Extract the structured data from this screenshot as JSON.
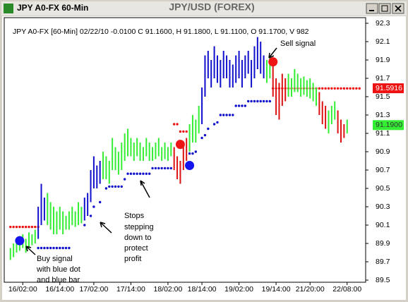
{
  "window": {
    "title": "JPY A0-FX 60-Min"
  },
  "chart_data": {
    "type": "ohlc",
    "title": "JPY/USD (FOREX)",
    "subtitle": "JPY A0-FX [60-Min] 02/22/10 -0.0100 C 91.1600, H 91.1800, L 91.1100, O 91.1700, V 982",
    "ylim": [
      89.5,
      92.3
    ],
    "yticks": [
      92.3,
      92.1,
      91.9,
      91.7,
      91.5,
      91.3,
      91.1,
      90.9,
      90.7,
      90.5,
      90.3,
      90.1,
      89.9,
      89.7,
      89.5
    ],
    "xlim": [
      -2,
      115
    ],
    "xticks": [
      {
        "value": 4,
        "label": "16/02:00"
      },
      {
        "value": 16,
        "label": "16/14:00"
      },
      {
        "value": 27,
        "label": "17/02:00"
      },
      {
        "value": 39,
        "label": "17/14:00"
      },
      {
        "value": 51,
        "label": "18/02:00"
      },
      {
        "value": 62,
        "label": "18/14:00"
      },
      {
        "value": 74,
        "label": "19/02:00"
      },
      {
        "value": 86,
        "label": "19/14:00"
      },
      {
        "value": 97,
        "label": "21/20:00"
      },
      {
        "value": 109,
        "label": "22/08:00"
      }
    ],
    "series": [
      {
        "color": "#33ee33",
        "x": [
          0,
          1,
          2,
          3,
          4,
          5,
          6,
          7,
          8,
          12,
          13,
          14,
          15,
          16,
          17,
          18,
          19,
          20,
          21,
          22,
          23,
          30,
          31,
          32,
          33,
          34,
          35,
          36,
          37,
          38,
          39,
          40,
          41,
          42,
          43,
          44,
          45,
          46,
          47,
          48,
          49,
          50,
          51,
          52,
          58,
          59,
          60,
          61,
          83,
          84,
          90,
          91,
          92,
          93,
          94,
          95,
          96,
          97,
          98,
          99,
          103,
          104,
          105,
          109
        ],
        "high": [
          89.85,
          89.9,
          89.95,
          89.98,
          90.0,
          89.95,
          90.02,
          90.0,
          90.05,
          90.45,
          90.35,
          90.3,
          90.25,
          90.3,
          90.25,
          90.2,
          90.25,
          90.3,
          90.25,
          90.35,
          90.3,
          90.9,
          90.85,
          90.8,
          91.05,
          90.95,
          90.9,
          91.0,
          91.1,
          91.15,
          91.05,
          91.0,
          91.05,
          91.0,
          90.95,
          91.05,
          91.0,
          90.95,
          91.0,
          91.05,
          90.95,
          91.0,
          90.95,
          91.0,
          91.2,
          91.3,
          91.25,
          91.4,
          91.9,
          91.95,
          91.75,
          91.7,
          91.8,
          91.75,
          91.7,
          91.72,
          91.68,
          91.7,
          91.65,
          91.6,
          91.35,
          91.4,
          91.45,
          91.25
        ],
        "low": [
          89.72,
          89.75,
          89.8,
          89.82,
          89.85,
          89.8,
          89.85,
          89.88,
          89.9,
          90.1,
          90.05,
          90.0,
          90.0,
          90.05,
          90.0,
          90.05,
          90.05,
          90.1,
          90.08,
          90.1,
          90.12,
          90.6,
          90.6,
          90.55,
          90.7,
          90.7,
          90.65,
          90.7,
          90.8,
          90.85,
          90.85,
          90.8,
          90.85,
          90.8,
          90.8,
          90.85,
          90.8,
          90.8,
          90.82,
          90.85,
          90.8,
          90.82,
          90.8,
          90.85,
          90.9,
          91.0,
          91.0,
          91.1,
          91.65,
          91.7,
          91.5,
          91.5,
          91.55,
          91.55,
          91.5,
          91.52,
          91.5,
          91.48,
          91.45,
          91.4,
          91.1,
          91.2,
          91.25,
          91.1
        ]
      },
      {
        "color": "#1010cc",
        "x": [
          9,
          10,
          11,
          24,
          25,
          26,
          27,
          28,
          29,
          62,
          63,
          64,
          65,
          66,
          67,
          68,
          69,
          70,
          71,
          72,
          73,
          74,
          75,
          76,
          77,
          78,
          79,
          80,
          81,
          82
        ],
        "high": [
          90.3,
          90.55,
          90.4,
          90.4,
          90.45,
          90.7,
          90.85,
          90.75,
          90.8,
          91.6,
          91.95,
          92.0,
          91.9,
          92.05,
          91.95,
          91.9,
          92.0,
          91.95,
          91.9,
          91.85,
          91.95,
          92.0,
          91.9,
          91.95,
          92.0,
          91.9,
          92.05,
          92.15,
          92.1,
          91.95
        ],
        "low": [
          89.95,
          90.1,
          90.15,
          90.15,
          90.2,
          90.35,
          90.5,
          90.5,
          90.55,
          91.2,
          91.5,
          91.7,
          91.6,
          91.7,
          91.65,
          91.6,
          91.7,
          91.7,
          91.6,
          91.6,
          91.65,
          91.7,
          91.6,
          91.7,
          91.75,
          91.6,
          91.7,
          91.8,
          91.75,
          91.7
        ]
      },
      {
        "color": "#dd1111",
        "x": [
          53,
          54,
          55,
          56,
          57,
          85,
          86,
          87,
          88,
          89,
          100,
          101,
          102,
          106,
          107,
          108
        ],
        "high": [
          90.95,
          90.85,
          90.8,
          91.0,
          91.05,
          91.85,
          91.7,
          91.65,
          91.75,
          91.7,
          91.55,
          91.45,
          91.4,
          91.35,
          91.25,
          91.2
        ],
        "low": [
          90.7,
          90.6,
          90.55,
          90.7,
          90.8,
          91.5,
          91.3,
          91.25,
          91.4,
          91.45,
          91.3,
          91.2,
          91.15,
          91.1,
          91.0,
          91.05
        ]
      }
    ],
    "stops": [
      {
        "color": "#1010cc",
        "x": [
          9,
          10,
          11,
          12,
          13,
          14,
          15,
          16,
          17,
          18,
          19,
          24,
          26,
          27,
          29,
          31,
          32,
          33,
          34,
          35,
          36,
          37,
          38,
          39,
          40,
          41,
          42,
          43,
          44,
          45,
          46,
          47,
          48,
          49,
          50,
          51,
          52,
          58,
          59,
          60,
          62,
          63,
          64,
          66,
          67,
          68,
          69,
          70,
          71,
          72,
          73,
          74,
          75,
          76,
          77,
          78,
          79,
          80,
          81,
          82,
          83,
          84
        ],
        "values": [
          89.85,
          89.85,
          89.85,
          89.85,
          89.85,
          89.85,
          89.85,
          89.85,
          89.85,
          89.85,
          89.85,
          90.1,
          90.2,
          90.3,
          90.35,
          90.5,
          90.52,
          90.52,
          90.52,
          90.52,
          90.52,
          90.6,
          90.66,
          90.66,
          90.66,
          90.66,
          90.66,
          90.66,
          90.66,
          90.66,
          90.72,
          90.72,
          90.72,
          90.72,
          90.72,
          90.72,
          90.72,
          90.88,
          90.88,
          90.9,
          91.05,
          91.08,
          91.15,
          91.2,
          91.22,
          91.3,
          91.3,
          91.3,
          91.3,
          91.3,
          91.4,
          91.4,
          91.4,
          91.4,
          91.45,
          91.45,
          91.45,
          91.45,
          91.45,
          91.45,
          91.45,
          91.45
        ]
      },
      {
        "color": "#ee1111",
        "x": [
          0,
          1,
          2,
          3,
          4,
          5,
          6,
          7,
          8,
          9,
          53,
          54,
          55,
          56,
          57,
          85,
          86,
          87,
          88,
          89,
          90,
          91,
          92,
          93,
          94,
          95,
          96,
          97,
          98,
          99,
          100,
          101,
          102,
          103,
          104,
          105,
          106,
          107,
          108,
          109,
          110,
          111,
          112,
          113
        ],
        "values": [
          90.08,
          90.08,
          90.08,
          90.08,
          90.08,
          90.08,
          90.08,
          90.08,
          90.08,
          90.08,
          91.2,
          91.2,
          91.12,
          91.12,
          91.12,
          91.59,
          91.59,
          91.59,
          91.59,
          91.59,
          91.59,
          91.59,
          91.59,
          91.59,
          91.59,
          91.59,
          91.59,
          91.59,
          91.59,
          91.59,
          91.59,
          91.59,
          91.59,
          91.59,
          91.59,
          91.59,
          91.59,
          91.59,
          91.59,
          91.59,
          91.59,
          91.59,
          91.59,
          91.59
        ]
      }
    ],
    "signals": [
      {
        "x": 3,
        "y": 89.93,
        "color": "#1515ee"
      },
      {
        "x": 55,
        "y": 90.98,
        "color": "#ee1515"
      },
      {
        "x": 58,
        "y": 90.75,
        "color": "#1515ee"
      },
      {
        "x": 85,
        "y": 91.88,
        "color": "#ee1515"
      }
    ],
    "price_labels": [
      {
        "value": 91.5916,
        "label": "91.5916",
        "color": "#ee1111",
        "text_color": "#ffffff"
      },
      {
        "value": 91.19,
        "label": "91.1900",
        "color": "#33ee33",
        "text_color": "#333333"
      }
    ],
    "annotations": {
      "sell": [
        "Sell signal"
      ],
      "buy": [
        "Buy signal",
        "with blue dot",
        "and blue bar"
      ],
      "stops": [
        "Stops",
        "stepping",
        "down to",
        "protect",
        "profit"
      ]
    }
  }
}
